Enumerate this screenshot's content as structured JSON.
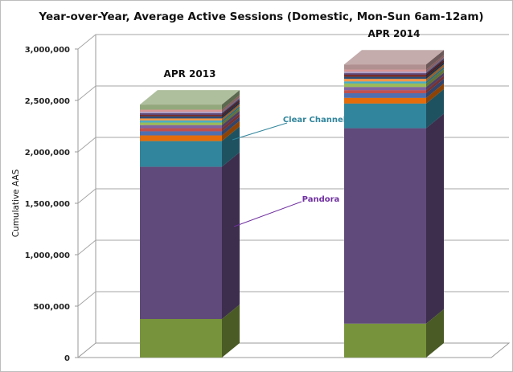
{
  "chart_data": {
    "type": "bar",
    "stacked": true,
    "three_d": true,
    "title": "Year-over-Year,  Average Active Sessions (Domestic, Mon-Sun  6am-12am)",
    "xlabel": "",
    "ylabel": "Cumulative AAS",
    "ylim": [
      0,
      3000000
    ],
    "yticks": [
      0,
      500000,
      1000000,
      1500000,
      2000000,
      2500000,
      3000000
    ],
    "ytick_labels": [
      "0",
      "500,000",
      "1,000,000",
      "1,500,000",
      "2,000,000",
      "2,500,000",
      "3,000,000"
    ],
    "grid": true,
    "categories": [
      "APR 2013",
      "APR 2014"
    ],
    "series": [
      {
        "color": "#77933C",
        "values": [
          375000,
          330000
        ]
      },
      {
        "name": "Pandora",
        "color": "#604A7B",
        "values": [
          1480000,
          1900000
        ]
      },
      {
        "name": "Clear Channel",
        "color": "#31859C",
        "values": [
          250000,
          240000
        ]
      },
      {
        "color": "#E46C0A",
        "values": [
          55000,
          55000
        ]
      },
      {
        "color": "#4F6FB0",
        "values": [
          40000,
          45000
        ]
      },
      {
        "color": "#C0504D",
        "values": [
          30000,
          30000
        ]
      },
      {
        "color": "#8064A2",
        "values": [
          30000,
          30000
        ]
      },
      {
        "color": "#9BBB59",
        "values": [
          25000,
          35000
        ]
      },
      {
        "color": "#4BACC6",
        "values": [
          20000,
          20000
        ]
      },
      {
        "color": "#F79646",
        "values": [
          20000,
          25000
        ]
      },
      {
        "color": "#2C4D75",
        "values": [
          20000,
          20000
        ]
      },
      {
        "color": "#772C2A",
        "values": [
          15000,
          20000
        ]
      },
      {
        "color": "#5F497A",
        "values": [
          15000,
          15000
        ]
      },
      {
        "color": "#B3A2C7",
        "values": [
          15000,
          15000
        ]
      },
      {
        "color": "#D99694",
        "values": [
          20000,
          20000
        ]
      },
      {
        "color": "#93A97D",
        "values": [
          50000,
          0
        ]
      },
      {
        "color": "#B09090",
        "values": [
          0,
          50000
        ]
      }
    ],
    "annotations": [
      {
        "text": "Clear Channel",
        "color": "#31859C"
      },
      {
        "text": "Pandora",
        "color": "#7030A0"
      }
    ]
  }
}
